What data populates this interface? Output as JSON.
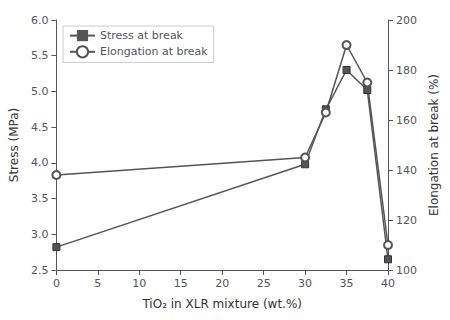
{
  "chart_data": {
    "type": "line",
    "xlabel": "TiO₂ in XLR mixture (wt.%)",
    "ylabel": "Stress (MPa)",
    "y2label": "Elongation at break (%)",
    "x": [
      0,
      30,
      32.5,
      35,
      37.5,
      40
    ],
    "series": [
      {
        "name": "Stress at break",
        "color": "#555555",
        "marker": "square",
        "values": [
          2.82,
          3.98,
          4.75,
          5.3,
          5.02,
          2.65
        ]
      },
      {
        "name": "Elongation at break",
        "color": "#555555",
        "marker": "open_circle",
        "axis": "y2",
        "values": [
          138,
          145,
          163,
          190,
          175,
          110
        ]
      }
    ],
    "xlim": [
      0,
      40
    ],
    "xticks": [
      0,
      5,
      10,
      15,
      20,
      25,
      30,
      35,
      40
    ],
    "ylim": [
      2.5,
      6.0
    ],
    "yticks": [
      2.5,
      {
        "value": 3,
        "label": "3.0"
      },
      3.5,
      {
        "value": 4,
        "label": "4.0"
      },
      4.5,
      {
        "value": 5,
        "label": "5.0"
      },
      5.5,
      {
        "value": 6,
        "label": "6.0"
      }
    ],
    "y2lim": [
      100,
      200
    ],
    "y2ticks": [
      100,
      120,
      140,
      160,
      180,
      200
    ],
    "grid": false,
    "legend": "upper left"
  }
}
